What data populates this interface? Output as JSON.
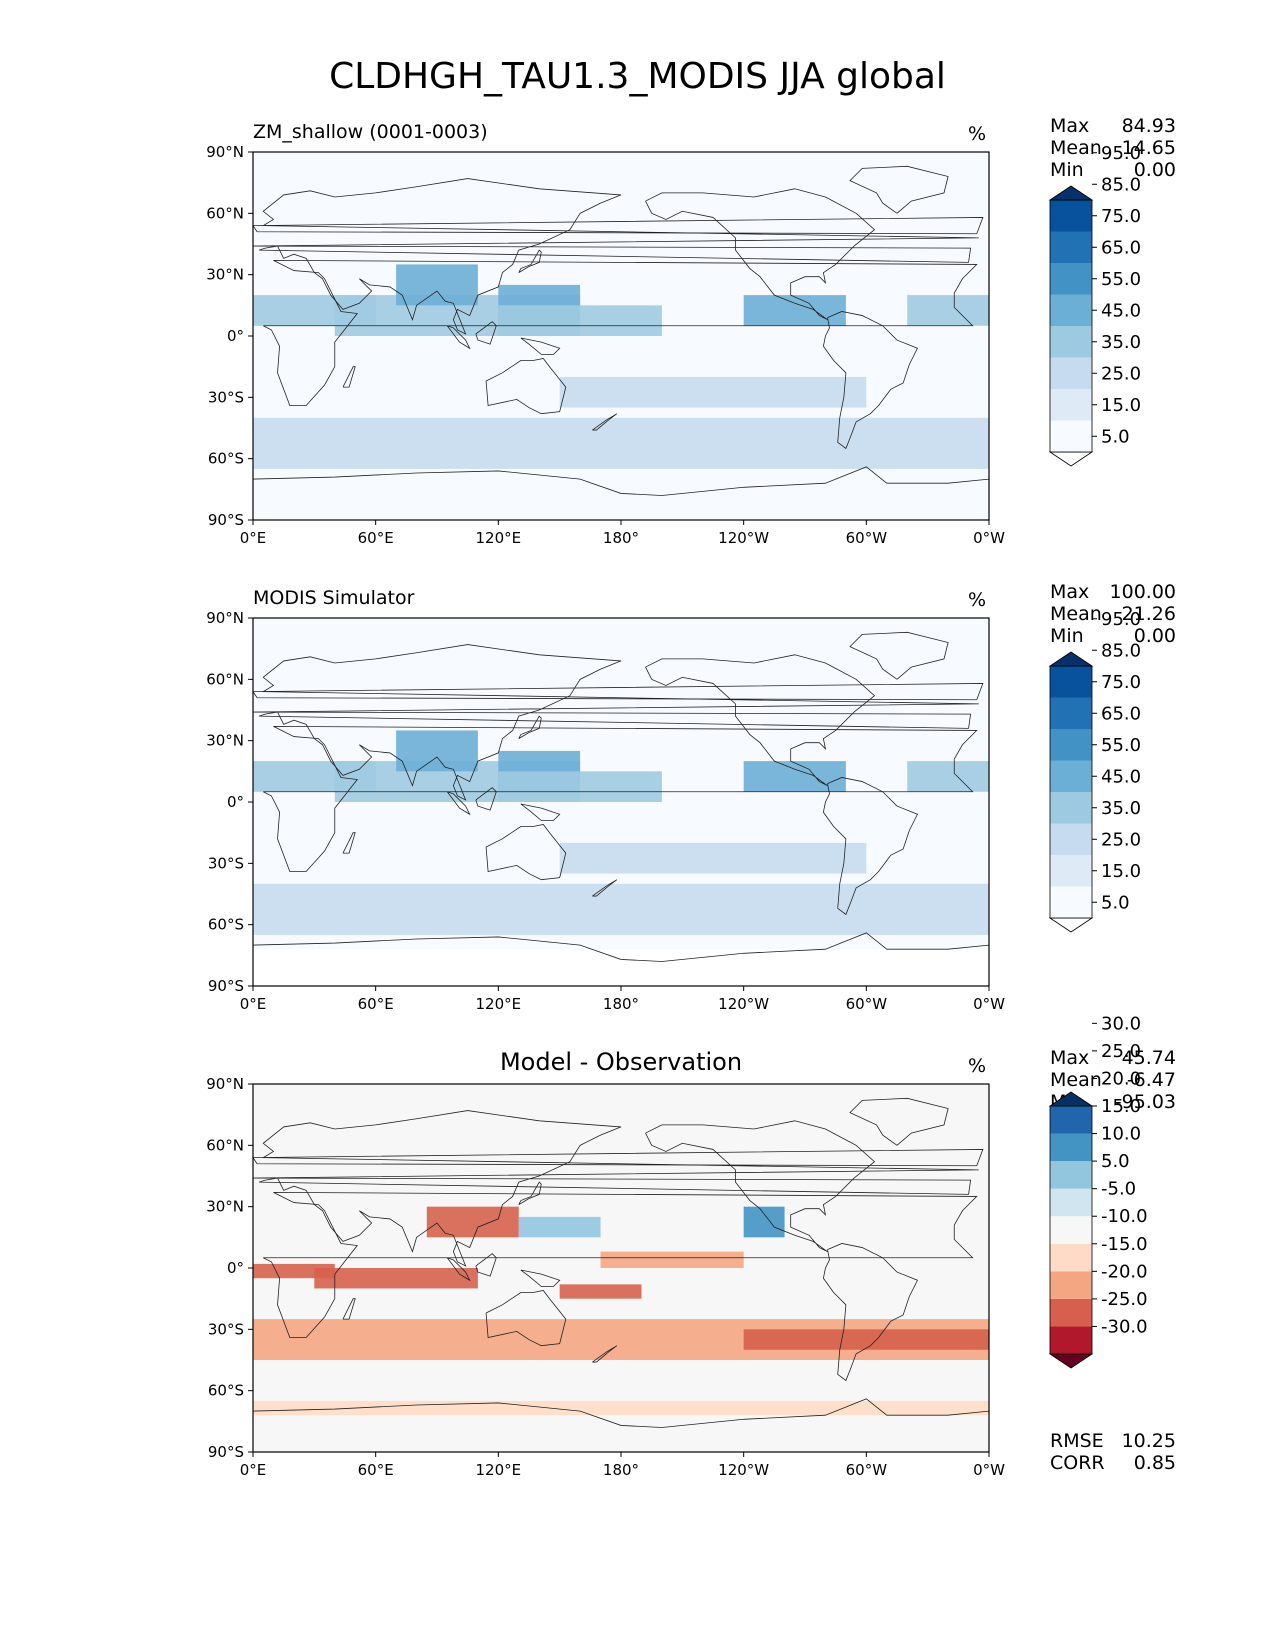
{
  "figure": {
    "title": "CLDHGH_TAU1.3_MODIS JJA global"
  },
  "colors": {
    "blues": [
      "#ffffff",
      "#f7fbff",
      "#deebf7",
      "#c6dbef",
      "#9ecae1",
      "#6baed6",
      "#4292c6",
      "#2171b5",
      "#08519c",
      "#08306b"
    ],
    "rdbu": [
      "#67001f",
      "#b2182b",
      "#d6604d",
      "#f4a582",
      "#fddbc7",
      "#f7f7f7",
      "#d1e5f0",
      "#92c5de",
      "#4393c3",
      "#2166ac",
      "#053061"
    ]
  },
  "panels": [
    {
      "title": "ZM_shallow (0001-0003)",
      "units": "%",
      "stats": [
        {
          "label": "Max",
          "value": "84.93"
        },
        {
          "label": "Mean",
          "value": "14.65"
        },
        {
          "label": "Min",
          "value": "0.00"
        }
      ]
    },
    {
      "title": "MODIS Simulator",
      "units": "%",
      "stats": [
        {
          "label": "Max",
          "value": "100.00"
        },
        {
          "label": "Mean",
          "value": "21.26"
        },
        {
          "label": "Min",
          "value": "0.00"
        }
      ]
    },
    {
      "title": "Model - Observation",
      "units": "%",
      "stats": [
        {
          "label": "Max",
          "value": "45.74"
        },
        {
          "label": "Mean",
          "value": "-6.47"
        },
        {
          "label": "Min",
          "value": "-95.03"
        }
      ],
      "extra_stats": [
        {
          "label": "RMSE",
          "value": "10.25"
        },
        {
          "label": "CORR",
          "value": "0.85"
        }
      ]
    }
  ],
  "chart_data": [
    {
      "type": "heatmap",
      "title": "ZM_shallow (0001-0003)",
      "units": "%",
      "x_ticks": [
        "0°E",
        "60°E",
        "120°E",
        "180°",
        "120°W",
        "60°W",
        "0°W"
      ],
      "y_ticks": [
        "90°N",
        "60°N",
        "30°N",
        "0°",
        "30°S",
        "60°S",
        "90°S"
      ],
      "xlim": [
        0,
        360
      ],
      "ylim": [
        -90,
        90
      ],
      "colorbar": {
        "levels": [
          "5.0",
          "15.0",
          "25.0",
          "35.0",
          "45.0",
          "55.0",
          "65.0",
          "75.0",
          "85.0",
          "95.0"
        ],
        "extend": "both"
      },
      "stats": {
        "max": 84.93,
        "mean": 14.65,
        "min": 0.0
      }
    },
    {
      "type": "heatmap",
      "title": "MODIS Simulator",
      "units": "%",
      "x_ticks": [
        "0°E",
        "60°E",
        "120°E",
        "180°",
        "120°W",
        "60°W",
        "0°W"
      ],
      "y_ticks": [
        "90°N",
        "60°N",
        "30°N",
        "0°",
        "30°S",
        "60°S",
        "90°S"
      ],
      "xlim": [
        0,
        360
      ],
      "ylim": [
        -90,
        90
      ],
      "colorbar": {
        "levels": [
          "5.0",
          "15.0",
          "25.0",
          "35.0",
          "45.0",
          "55.0",
          "65.0",
          "75.0",
          "85.0",
          "95.0"
        ],
        "extend": "both"
      },
      "stats": {
        "max": 100.0,
        "mean": 21.26,
        "min": 0.0
      }
    },
    {
      "type": "heatmap",
      "title": "Model - Observation",
      "units": "%",
      "x_ticks": [
        "0°E",
        "60°E",
        "120°E",
        "180°",
        "120°W",
        "60°W",
        "0°W"
      ],
      "y_ticks": [
        "90°N",
        "60°N",
        "30°N",
        "0°",
        "30°S",
        "60°S",
        "90°S"
      ],
      "xlim": [
        0,
        360
      ],
      "ylim": [
        -90,
        90
      ],
      "colorbar": {
        "levels": [
          "-30.0",
          "-25.0",
          "-20.0",
          "-15.0",
          "-10.0",
          "-5.0",
          "5.0",
          "10.0",
          "15.0",
          "20.0",
          "25.0",
          "30.0"
        ],
        "extend": "both"
      },
      "stats": {
        "max": 45.74,
        "mean": -6.47,
        "min": -95.03,
        "rmse": 10.25,
        "corr": 0.85
      }
    }
  ]
}
